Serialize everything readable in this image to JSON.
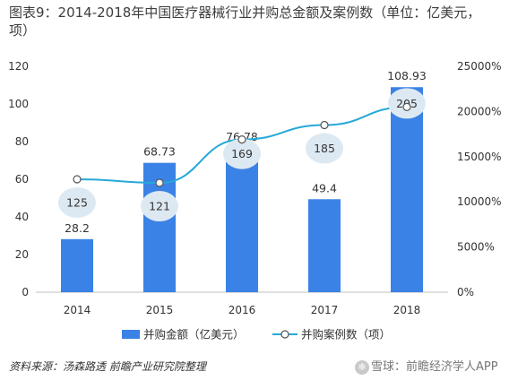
{
  "title": "图表9：2014-2018年中国医疗器械行业并购总金额及案例数（单位：亿美元，项）",
  "source": "资料来源：汤森路透 前瞻产业研究院整理",
  "watermark": "前瞻经济学人APP",
  "watermark_brand": "雪球：",
  "colors": {
    "bar": "#3b82e6",
    "line": "#26a9d9",
    "bubble": "#dde9f2",
    "axis": "#bfbfbf",
    "text": "#333333"
  },
  "chart_data": {
    "type": "bar",
    "categories": [
      "2014",
      "2015",
      "2016",
      "2017",
      "2018"
    ],
    "series": [
      {
        "name": "并购金额（亿美元）",
        "type": "bar",
        "axis": "left",
        "values": [
          28.2,
          68.73,
          76.78,
          49.4,
          108.93
        ]
      },
      {
        "name": "并购案例数（项）",
        "type": "line",
        "axis": "right",
        "values": [
          125,
          121,
          169,
          185,
          205
        ]
      }
    ],
    "left_axis": {
      "ticks": [
        "0",
        "20",
        "40",
        "60",
        "80",
        "100",
        "120"
      ],
      "ylim": [
        0,
        120
      ]
    },
    "right_axis": {
      "ticks": [
        "0%",
        "5000%",
        "10000%",
        "15000%",
        "20000%",
        "25000%"
      ],
      "ylim": [
        0,
        25000
      ]
    },
    "line_scaled_values": [
      12500,
      12100,
      16900,
      18500,
      20500
    ],
    "legend": [
      "并购金额（亿美元）",
      "并购案例数（项）"
    ],
    "legend_position": "bottom"
  }
}
